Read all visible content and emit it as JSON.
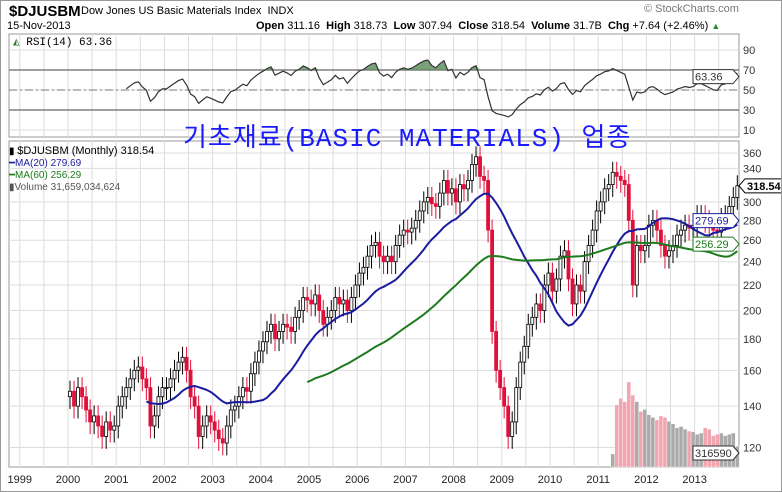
{
  "header": {
    "symbol": "$DJUSBM",
    "name": "Dow Jones US Basic Materials Index",
    "exchange": "INDX",
    "date": "15-Nov-2013",
    "brand": "© StockCharts.com",
    "open_label": "Open",
    "open": "311.16",
    "high_label": "High",
    "high": "318.73",
    "low_label": "Low",
    "low": "307.94",
    "close_label": "Close",
    "close": "318.54",
    "volume_label": "Volume",
    "volume": "31.7B",
    "chg_label": "Chg",
    "chg": "+7.64 (+2.46%)"
  },
  "overlay_title": "기초재료(BASIC MATERIALS) 업종",
  "colors": {
    "up": "#000000",
    "down": "#e0103a",
    "ma20": "#1c1ca0",
    "ma60": "#1e7a1e",
    "rsi_fill": "#5a8a5a",
    "volume_up": "#aaaaaa",
    "volume_down": "#f2a5b0"
  },
  "chart_data": [
    {
      "type": "line",
      "title": "RSI(14) 63.36",
      "label": "RSI(14)",
      "value": "63.36",
      "yticks": [
        "90",
        "70",
        "50",
        "30",
        "10"
      ],
      "ylim": [
        0,
        100
      ],
      "overbought": 70,
      "oversold": 30,
      "mid": 50
    },
    {
      "type": "candlestick",
      "title": "$DJUSBM (Monthly) 318.54",
      "legend": {
        "price": "$DJUSBM (Monthly) 318.54",
        "ma20": "MA(20) 279.69",
        "ma60": "MA(60) 256.29",
        "volume": "Volume 31,659,034,624"
      },
      "scale": "log",
      "ylim": [
        115,
        370
      ],
      "yticks": [
        "360",
        "340",
        "300",
        "280",
        "260",
        "240",
        "220",
        "200",
        "180",
        "160",
        "140",
        "120"
      ],
      "xticks": [
        "1999",
        "2000",
        "2001",
        "2002",
        "2003",
        "2004",
        "2005",
        "2006",
        "2007",
        "2008",
        "2009",
        "2010",
        "2011",
        "2012",
        "2013"
      ],
      "start": "2000-01",
      "closes": [
        148,
        140,
        150,
        145,
        138,
        132,
        135,
        130,
        125,
        132,
        128,
        130,
        140,
        145,
        150,
        155,
        160,
        162,
        155,
        150,
        130,
        135,
        145,
        150,
        150,
        155,
        160,
        165,
        168,
        160,
        145,
        140,
        125,
        130,
        135,
        132,
        128,
        124,
        122,
        130,
        138,
        140,
        145,
        150,
        148,
        158,
        165,
        172,
        178,
        185,
        190,
        180,
        185,
        190,
        188,
        185,
        195,
        200,
        210,
        208,
        205,
        212,
        200,
        190,
        195,
        200,
        210,
        205,
        208,
        200,
        210,
        220,
        230,
        235,
        245,
        255,
        258,
        245,
        240,
        245,
        240,
        255,
        265,
        270,
        268,
        272,
        280,
        290,
        300,
        305,
        298,
        295,
        310,
        325,
        310,
        315,
        300,
        320,
        315,
        325,
        345,
        355,
        330,
        325,
        270,
        185,
        160,
        150,
        140,
        125,
        132,
        150,
        165,
        175,
        190,
        195,
        205,
        200,
        220,
        230,
        215,
        225,
        245,
        250,
        225,
        205,
        220,
        215,
        240,
        255,
        270,
        290,
        300,
        315,
        320,
        335,
        330,
        325,
        320,
        280,
        220,
        255,
        250,
        255,
        275,
        280,
        270,
        255,
        245,
        250,
        255,
        265,
        270,
        275,
        272,
        275,
        285,
        285,
        280,
        275,
        270,
        268,
        282,
        285,
        295,
        305,
        318.54
      ],
      "volume_start": "2011-04",
      "volumes_billions": [
        20,
        95,
        105,
        100,
        130,
        110,
        100,
        85,
        88,
        80,
        76,
        72,
        78,
        76,
        70,
        66,
        60,
        62,
        58,
        55,
        54,
        50,
        52,
        60,
        58,
        48,
        50,
        52,
        48,
        50,
        52,
        31.7
      ],
      "tags": {
        "close": "318.54",
        "ma20": "279.69",
        "ma60": "256.29",
        "volume": "316590"
      }
    }
  ]
}
